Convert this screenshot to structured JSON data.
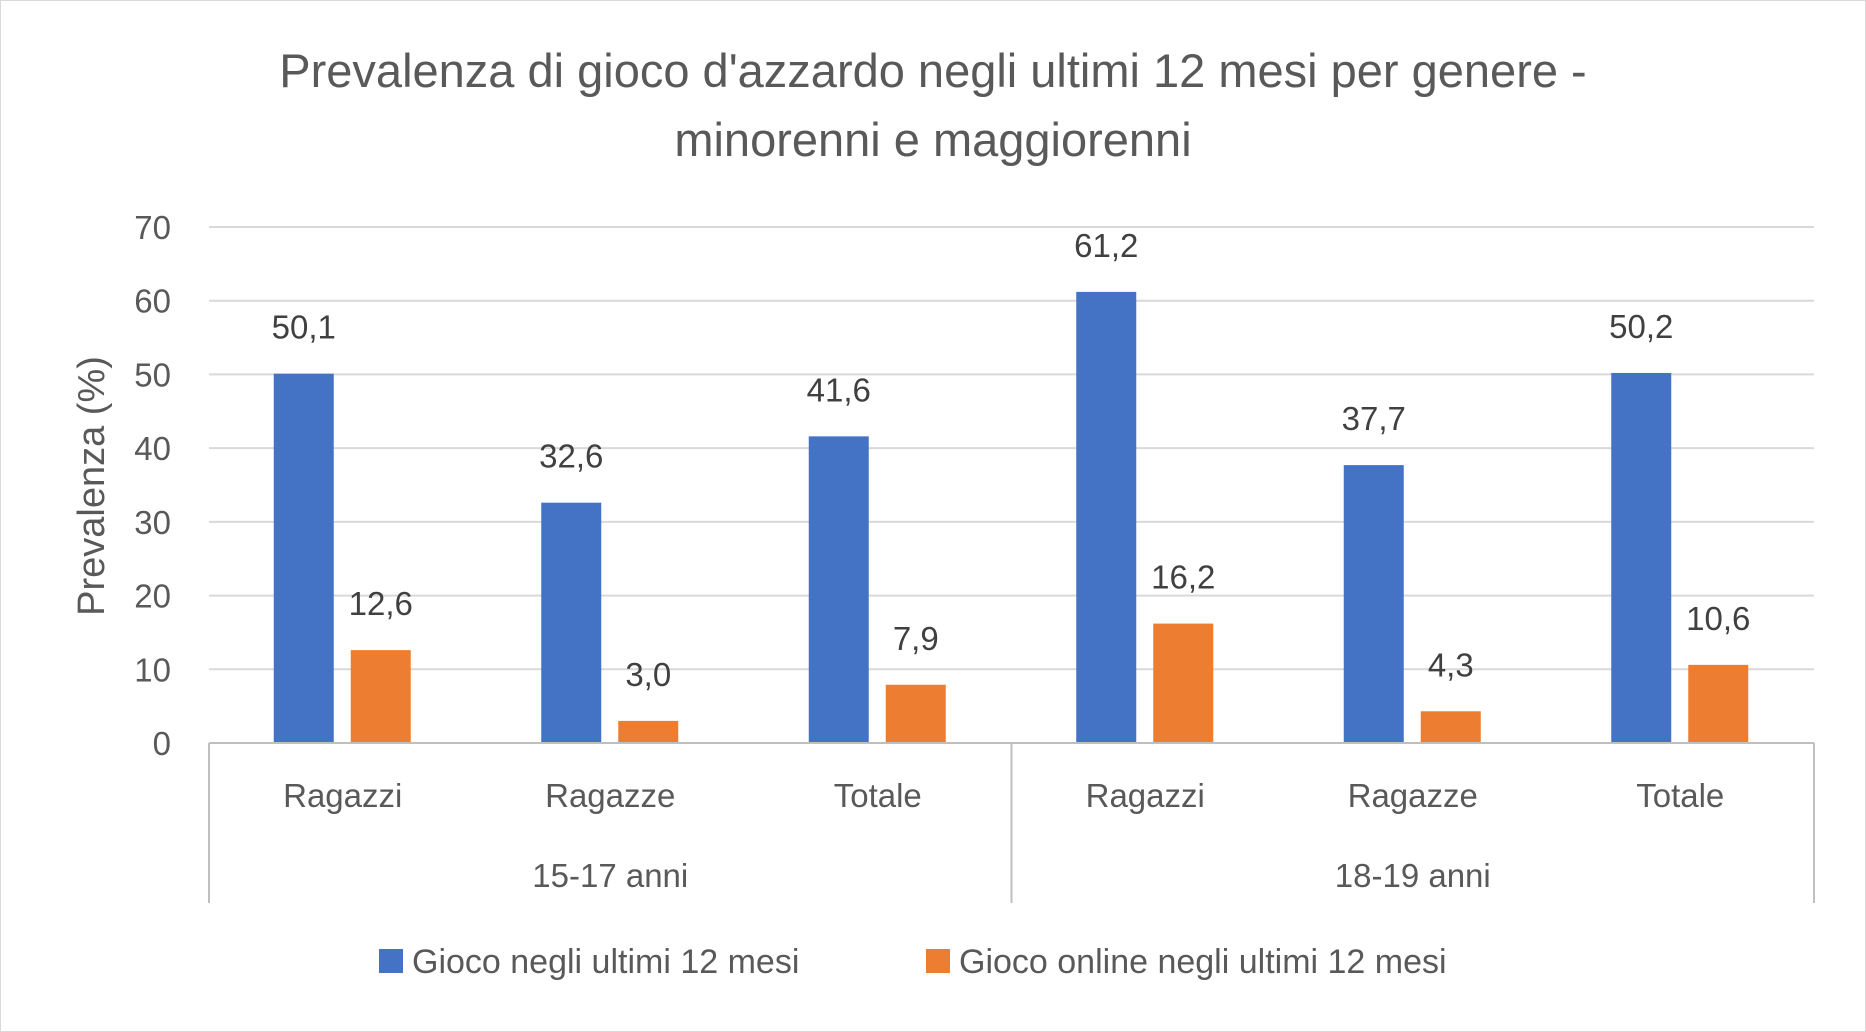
{
  "chart_data": {
    "type": "bar",
    "title_lines": [
      "Prevalenza di gioco d'azzardo negli ultimi 12 mesi per genere -",
      "minorenni e maggiorenni"
    ],
    "xlabel": "",
    "ylabel": "Prevalenza (%)",
    "ylim": [
      0,
      70
    ],
    "yticks": [
      0,
      10,
      20,
      30,
      40,
      50,
      60,
      70
    ],
    "grid": true,
    "legend_position": "bottom",
    "groups": [
      {
        "label": "15-17 anni",
        "categories": [
          "Ragazzi",
          "Ragazze",
          "Totale"
        ]
      },
      {
        "label": "18-19 anni",
        "categories": [
          "Ragazzi",
          "Ragazze",
          "Totale"
        ]
      }
    ],
    "categories": [
      "Ragazzi",
      "Ragazze",
      "Totale",
      "Ragazzi",
      "Ragazze",
      "Totale"
    ],
    "series": [
      {
        "name": "Gioco negli ultimi 12 mesi",
        "color": "#4472c4",
        "values": [
          50.1,
          32.6,
          41.6,
          61.2,
          37.7,
          50.2
        ],
        "labels": [
          "50,1",
          "32,6",
          "41,6",
          "61,2",
          "37,7",
          "50,2"
        ]
      },
      {
        "name": "Gioco online negli ultimi 12 mesi",
        "color": "#ed7d31",
        "values": [
          12.6,
          3.0,
          7.9,
          16.2,
          4.3,
          10.6
        ],
        "labels": [
          "12,6",
          "3,0",
          "7,9",
          "16,2",
          "4,3",
          "10,6"
        ]
      }
    ]
  }
}
